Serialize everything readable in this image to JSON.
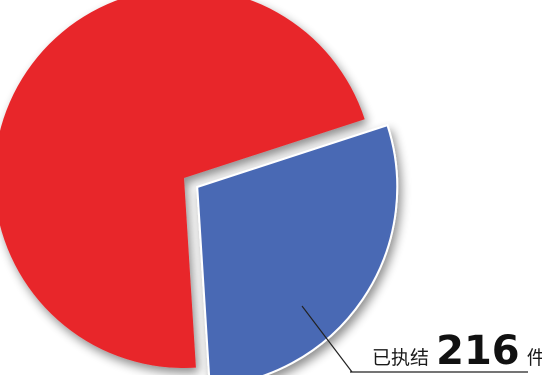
{
  "chart_data": {
    "type": "pie",
    "title": "",
    "slices": [
      {
        "name": "",
        "value": 0.71,
        "color": "#e8262c",
        "exploded": false
      },
      {
        "name": "已执结",
        "value": 0.29,
        "color": "#4a69b4",
        "exploded": true
      }
    ],
    "annotation": {
      "prefix": "已执结",
      "value": "216",
      "unit": "件"
    }
  }
}
